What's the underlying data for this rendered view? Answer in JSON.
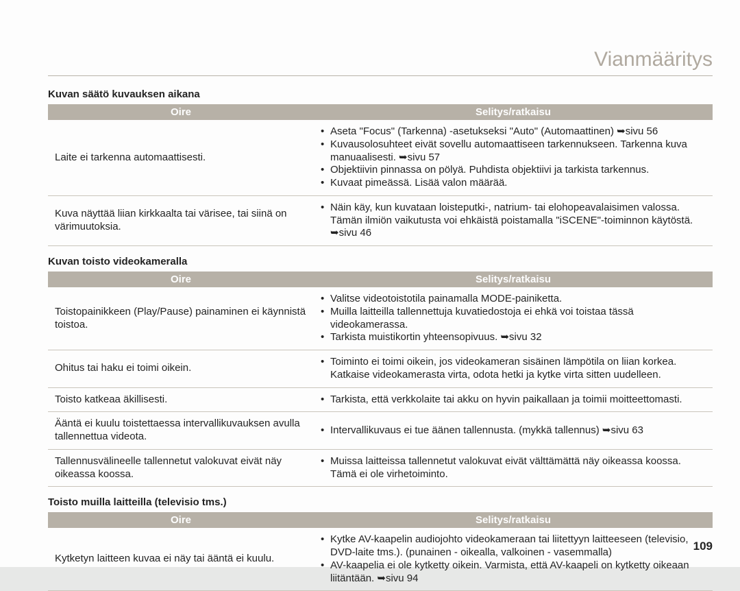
{
  "page_title": "Vianmääritys",
  "page_number": "109",
  "columns": {
    "oire": "Oire",
    "sel": "Selitys/ratkaisu"
  },
  "sections": [
    {
      "title": "Kuvan säätö kuvauksen aikana",
      "rows": [
        {
          "oire": "Laite ei tarkenna automaattisesti.",
          "sel": [
            "Aseta \"Focus\" (Tarkenna) -asetukseksi \"Auto\" (Automaattinen) ➥sivu 56",
            "Kuvausolosuhteet eivät sovellu automaattiseen tarkennukseen. Tarkenna kuva manuaalisesti. ➥sivu 57",
            "Objektiivin pinnassa on pölyä. Puhdista objektiivi ja tarkista tarkennus.",
            "Kuvaat pimeässä. Lisää valon määrää."
          ]
        },
        {
          "oire": "Kuva näyttää liian kirkkaalta tai värisee, tai siinä on värimuutoksia.",
          "sel": [
            "Näin käy, kun kuvataan loisteputki-, natrium- tai elohopeavalaisimen valossa. Tämän ilmiön vaikutusta voi ehkäistä poistamalla \"iSCENE\"-toiminnon käytöstä. ➥sivu 46"
          ]
        }
      ]
    },
    {
      "title": "Kuvan toisto videokameralla",
      "rows": [
        {
          "oire": "Toistopainikkeen (Play/Pause) painaminen ei käynnistä toistoa.",
          "sel": [
            "Valitse videotoistotila painamalla MODE-painiketta.",
            "Muilla laitteilla tallennettuja kuvatiedostoja ei ehkä voi toistaa tässä videokamerassa.",
            "Tarkista muistikortin yhteensopivuus. ➥sivu 32"
          ]
        },
        {
          "oire": "Ohitus tai haku ei toimi oikein.",
          "sel": [
            "Toiminto ei toimi oikein, jos videokameran sisäinen lämpötila on liian korkea. Katkaise videokamerasta virta, odota hetki ja kytke virta sitten uudelleen."
          ]
        },
        {
          "oire": "Toisto katkeaa äkillisesti.",
          "sel": [
            "Tarkista, että verkkolaite tai akku on hyvin paikallaan ja toimii moitteettomasti."
          ]
        },
        {
          "oire": "Ääntä ei kuulu toistettaessa intervallikuvauksen avulla tallennettua videota.",
          "sel": [
            "Intervallikuvaus ei tue äänen tallennusta. (mykkä tallennus) ➥sivu 63"
          ]
        },
        {
          "oire": "Tallennusvälineelle tallennetut valokuvat eivät näy oikeassa koossa.",
          "sel": [
            "Muissa laitteissa tallennetut valokuvat eivät välttämättä näy oikeassa koossa. Tämä ei ole virhetoiminto."
          ]
        }
      ]
    },
    {
      "title": "Toisto muilla laitteilla (televisio tms.)",
      "rows": [
        {
          "oire": "Kytketyn laitteen kuvaa ei näy tai ääntä ei kuulu.",
          "sel": [
            "Kytke AV-kaapelin audiojohto videokameraan tai liitettyyn laitteeseen (televisio, DVD-laite tms.). (punainen - oikealla, valkoinen - vasemmalla)",
            "AV-kaapelia ei ole kytketty oikein. Varmista, että AV-kaapeli on kytketty oikeaan liitäntään. ➥sivu 94"
          ]
        }
      ]
    }
  ]
}
